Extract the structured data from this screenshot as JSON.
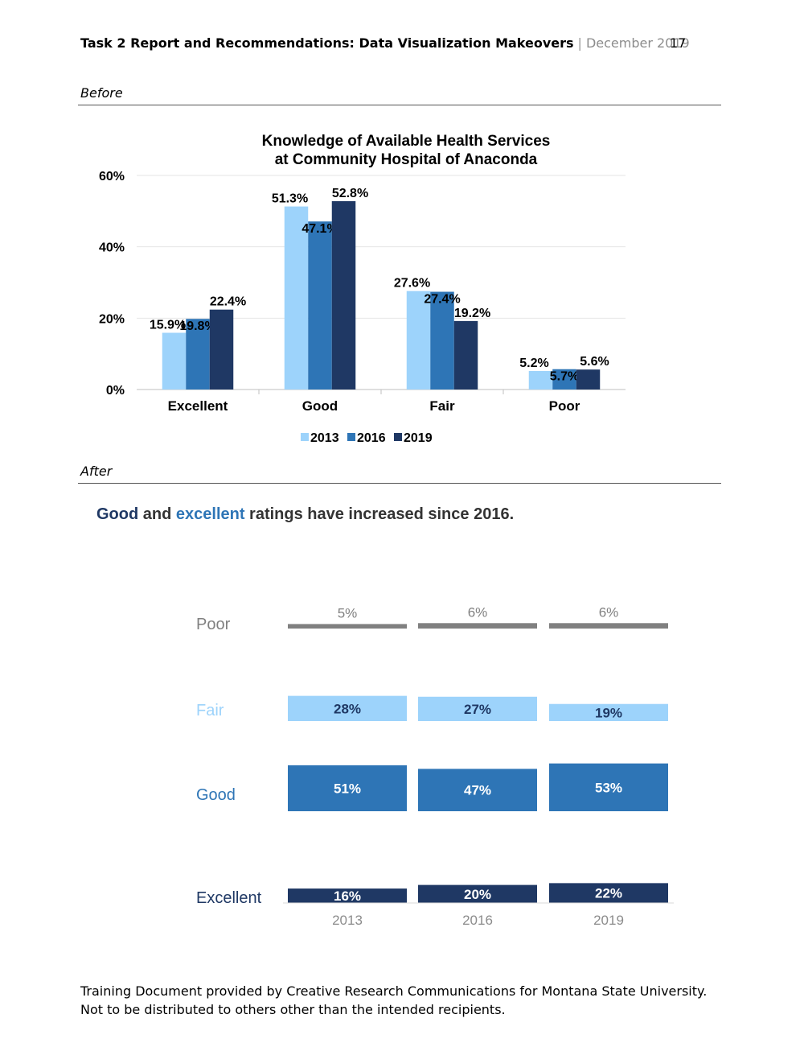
{
  "header": {
    "doc_title": "Task 2 Report and Recommendations: Data Visualization Makeovers",
    "separator": "|",
    "date": "December 2019",
    "page_number": "17"
  },
  "sections": {
    "before_label": "Before",
    "after_label": "After"
  },
  "headline": {
    "good_word": "Good",
    "and_word": " and ",
    "excellent_word": "excellent",
    "rest": " ratings have increased since 2016."
  },
  "colors": {
    "y2013": "#9dd3fb",
    "y2016": "#2e75b6",
    "y2019": "#1f3864",
    "poor_gray": "#808080",
    "label_gray": "#8c8c8c"
  },
  "chart_data": [
    {
      "type": "bar",
      "title_lines": [
        "Knowledge of Available Health Services",
        "at Community Hospital of Anaconda"
      ],
      "categories": [
        "Excellent",
        "Good",
        "Fair",
        "Poor"
      ],
      "series": [
        {
          "name": "2013",
          "values": [
            15.9,
            51.3,
            27.6,
            5.2
          ],
          "labels": [
            "15.9%",
            "51.3%",
            "27.6%",
            "5.2%"
          ]
        },
        {
          "name": "2016",
          "values": [
            19.8,
            47.1,
            27.4,
            5.7
          ],
          "labels": [
            "19.8%",
            "47.1%",
            "27.4%",
            "5.7%"
          ]
        },
        {
          "name": "2019",
          "values": [
            22.4,
            52.8,
            19.2,
            5.6
          ],
          "labels": [
            "22.4%",
            "52.8%",
            "19.2%",
            "5.6%"
          ]
        }
      ],
      "ylim": [
        0,
        60
      ],
      "yticks": [
        0,
        20,
        40,
        60
      ],
      "ytick_labels": [
        "0%",
        "20%",
        "40%",
        "60%"
      ],
      "grid": true,
      "legend": "bottom"
    },
    {
      "type": "bar",
      "layout": "small multiples by rating",
      "years": [
        "2013",
        "2016",
        "2019"
      ],
      "rows": [
        {
          "category": "Poor",
          "values": [
            5,
            6,
            6
          ],
          "labels": [
            "5%",
            "6%",
            "6%"
          ]
        },
        {
          "category": "Fair",
          "values": [
            28,
            27,
            19
          ],
          "labels": [
            "28%",
            "27%",
            "19%"
          ]
        },
        {
          "category": "Good",
          "values": [
            51,
            47,
            53
          ],
          "labels": [
            "51%",
            "47%",
            "53%"
          ]
        },
        {
          "category": "Excellent",
          "values": [
            16,
            20,
            22
          ],
          "labels": [
            "16%",
            "20%",
            "22%"
          ]
        }
      ]
    }
  ],
  "footer": {
    "text": "Training Document provided by Creative Research Communications for Montana State University. Not to be distributed to others other than the intended recipients."
  }
}
